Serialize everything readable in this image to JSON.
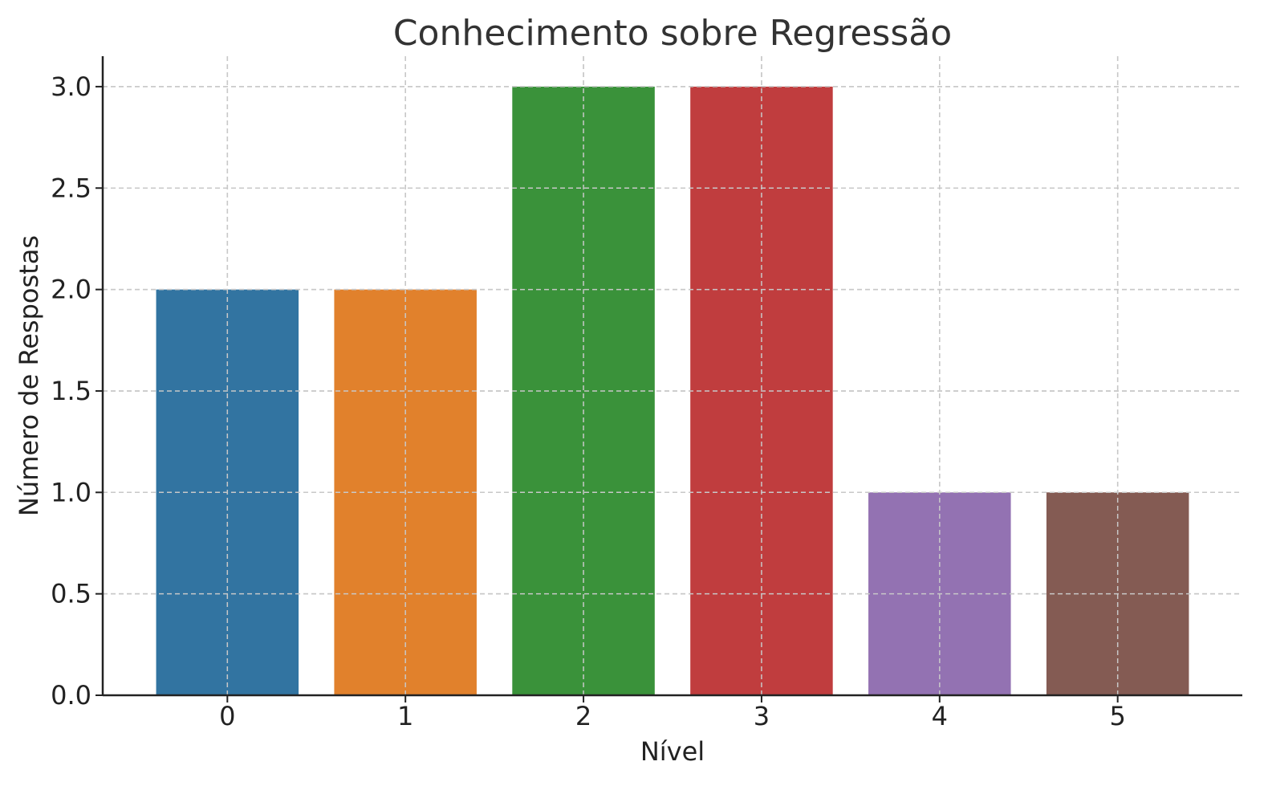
{
  "chart_data": {
    "type": "bar",
    "title": "Conhecimento sobre Regressão",
    "xlabel": "Nível",
    "ylabel": "Número de Respostas",
    "categories": [
      "0",
      "1",
      "2",
      "3",
      "4",
      "5"
    ],
    "values": [
      2,
      2,
      3,
      3,
      1,
      1
    ],
    "colors": [
      "#3274a1",
      "#e1812c",
      "#3a923a",
      "#c03d3e",
      "#9372b2",
      "#845b53"
    ],
    "ylim": [
      0,
      3.15
    ],
    "yticks": [
      0.0,
      0.5,
      1.0,
      1.5,
      2.0,
      2.5,
      3.0
    ],
    "ytick_labels": [
      "0.0",
      "0.5",
      "1.0",
      "1.5",
      "2.0",
      "2.5",
      "3.0"
    ],
    "grid": true
  }
}
